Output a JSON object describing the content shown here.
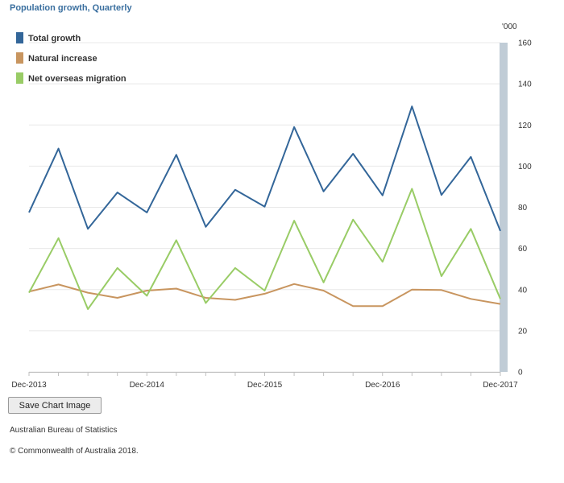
{
  "chart_data": {
    "type": "line",
    "title": "Population growth, Quarterly",
    "units_label": "'000",
    "ylim": [
      0,
      160
    ],
    "yticks": [
      0,
      20,
      40,
      60,
      80,
      100,
      120,
      140,
      160
    ],
    "x_tick_labels": [
      "Dec-2013",
      "Dec-2014",
      "Dec-2015",
      "Dec-2016",
      "Dec-2017"
    ],
    "x_tick_indices": [
      0,
      4,
      8,
      12,
      16
    ],
    "x": [
      "Dec-2013",
      "Mar-2014",
      "Jun-2014",
      "Sep-2014",
      "Dec-2014",
      "Mar-2015",
      "Jun-2015",
      "Sep-2015",
      "Dec-2015",
      "Mar-2016",
      "Jun-2016",
      "Sep-2016",
      "Dec-2016",
      "Mar-2017",
      "Jun-2017",
      "Sep-2017",
      "Dec-2017"
    ],
    "series": [
      {
        "name": "Total growth",
        "color": "#336699",
        "values": [
          77.5,
          108.5,
          69.5,
          87.2,
          77.5,
          105.5,
          70.5,
          88.5,
          80.3,
          119.0,
          87.7,
          106.0,
          85.8,
          129.0,
          86.0,
          104.5,
          68.5
        ]
      },
      {
        "name": "Natural increase",
        "color": "#c8955f",
        "values": [
          39.0,
          42.5,
          38.5,
          36.0,
          39.5,
          40.5,
          36.0,
          35.0,
          38.0,
          42.7,
          39.5,
          32.0,
          32.0,
          40.0,
          39.8,
          35.5,
          33.0
        ]
      },
      {
        "name": "Net overseas migration",
        "color": "#99cc66",
        "values": [
          38.5,
          65.0,
          30.5,
          50.5,
          37.0,
          64.0,
          33.5,
          50.5,
          39.5,
          73.5,
          43.5,
          74.0,
          53.5,
          89.0,
          46.5,
          69.5,
          35.5
        ]
      }
    ]
  },
  "ui": {
    "save_button_label": "Save Chart Image",
    "source_text": "Australian Bureau of Statistics",
    "copyright_text": "© Commonwealth of Australia 2018."
  }
}
